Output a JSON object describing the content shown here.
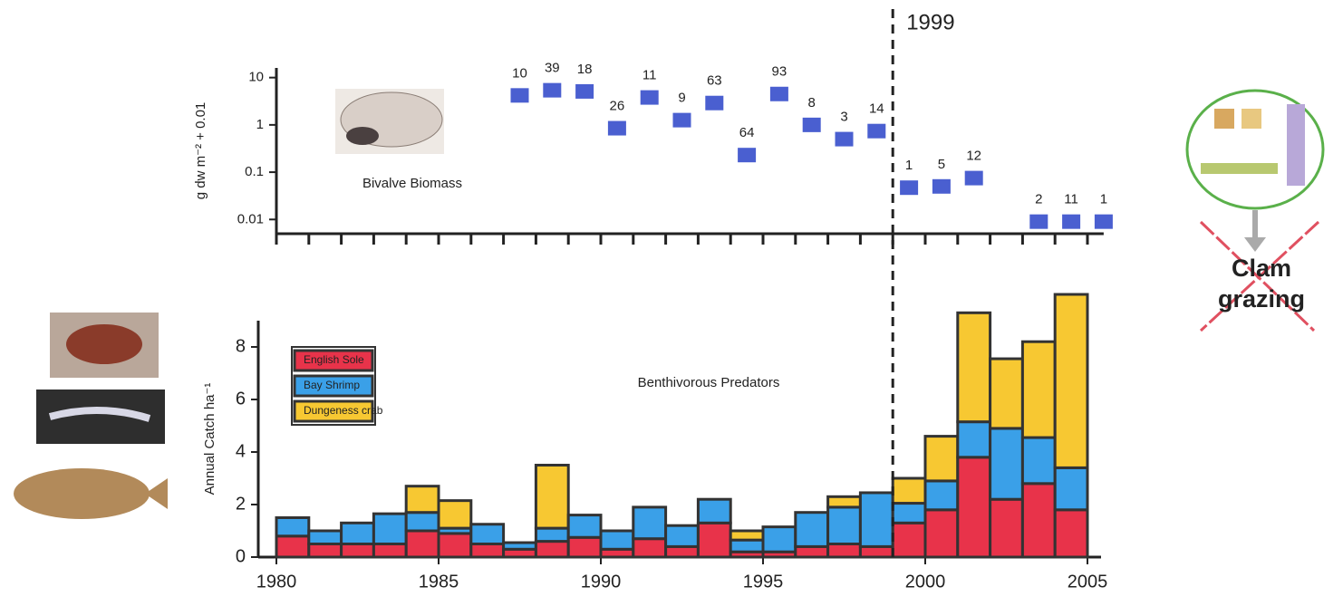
{
  "chart_data": [
    {
      "type": "scatter",
      "ylabel": "g dw m⁻² + 0.01",
      "annotation": "Bivalve Biomass",
      "log_y": true,
      "color": "#4a5fd0",
      "x": [
        1987.5,
        1988.5,
        1989.5,
        1990.5,
        1991.5,
        1992.5,
        1993.5,
        1994.5,
        1995.5,
        1996.5,
        1997.5,
        1998.5,
        1999.5,
        2000.5,
        2001.5,
        2003.5,
        2004.5,
        2005.5
      ],
      "values": [
        4.2,
        5.4,
        5.1,
        0.85,
        3.8,
        1.26,
        2.9,
        0.23,
        4.5,
        1.0,
        0.5,
        0.74,
        0.047,
        0.05,
        0.075,
        0.009,
        0.009,
        0.009
      ],
      "sample_sizes": [
        10,
        39,
        18,
        26,
        11,
        9,
        63,
        64,
        93,
        8,
        3,
        14,
        1,
        5,
        12,
        2,
        11,
        1
      ],
      "xlim": [
        1980,
        2005.5
      ],
      "ylim": [
        0.005,
        16
      ],
      "yticks": [
        10,
        1,
        0.1,
        0.01
      ]
    },
    {
      "type": "stacked_histogram",
      "ylabel": "Annual Catch ha⁻¹",
      "annotation": "Benthivorous Predators",
      "bins": [
        1980,
        1981,
        1982,
        1983,
        1984,
        1985,
        1986,
        1987,
        1988,
        1989,
        1990,
        1991,
        1992,
        1993,
        1994,
        1995,
        1996,
        1997,
        1998,
        1999,
        2000,
        2001,
        2002,
        2003,
        2004,
        2005
      ],
      "series": [
        {
          "name": "English Sole",
          "color": "#e8334a",
          "values": [
            0.8,
            0.5,
            0.5,
            0.5,
            1.0,
            0.9,
            0.5,
            0.3,
            0.6,
            0.75,
            0.3,
            0.7,
            0.4,
            1.3,
            0.2,
            0.2,
            0.4,
            0.5,
            0.4,
            1.3,
            1.8,
            3.8,
            2.2,
            2.8,
            1.8
          ]
        },
        {
          "name": "Bay Shrimp",
          "color": "#3aa0e8",
          "values": [
            0.7,
            0.5,
            0.8,
            1.15,
            0.7,
            0.2,
            0.75,
            0.25,
            0.5,
            0.85,
            0.7,
            1.2,
            0.8,
            0.9,
            0.45,
            0.95,
            1.3,
            1.4,
            2.05,
            0.75,
            1.1,
            1.35,
            2.7,
            1.75,
            1.6
          ]
        },
        {
          "name": "Dungeness crab",
          "color": "#f7c832",
          "values": [
            0,
            0,
            0,
            0,
            1.0,
            1.05,
            0,
            0,
            2.4,
            0,
            0,
            0,
            0,
            0,
            0.35,
            0,
            0,
            0.4,
            0,
            0.95,
            1.7,
            4.15,
            2.65,
            3.65,
            6.6
          ]
        }
      ],
      "xlim": [
        1980,
        2005
      ],
      "xticks": [
        1980,
        1985,
        1990,
        1995,
        2000,
        2005
      ],
      "ylim": [
        0,
        9
      ],
      "yticks": [
        0,
        2,
        4,
        6,
        8
      ]
    }
  ],
  "divider": {
    "x": 1999,
    "label": "1999"
  },
  "side_note": {
    "lines": [
      "Clam",
      "grazing"
    ]
  }
}
